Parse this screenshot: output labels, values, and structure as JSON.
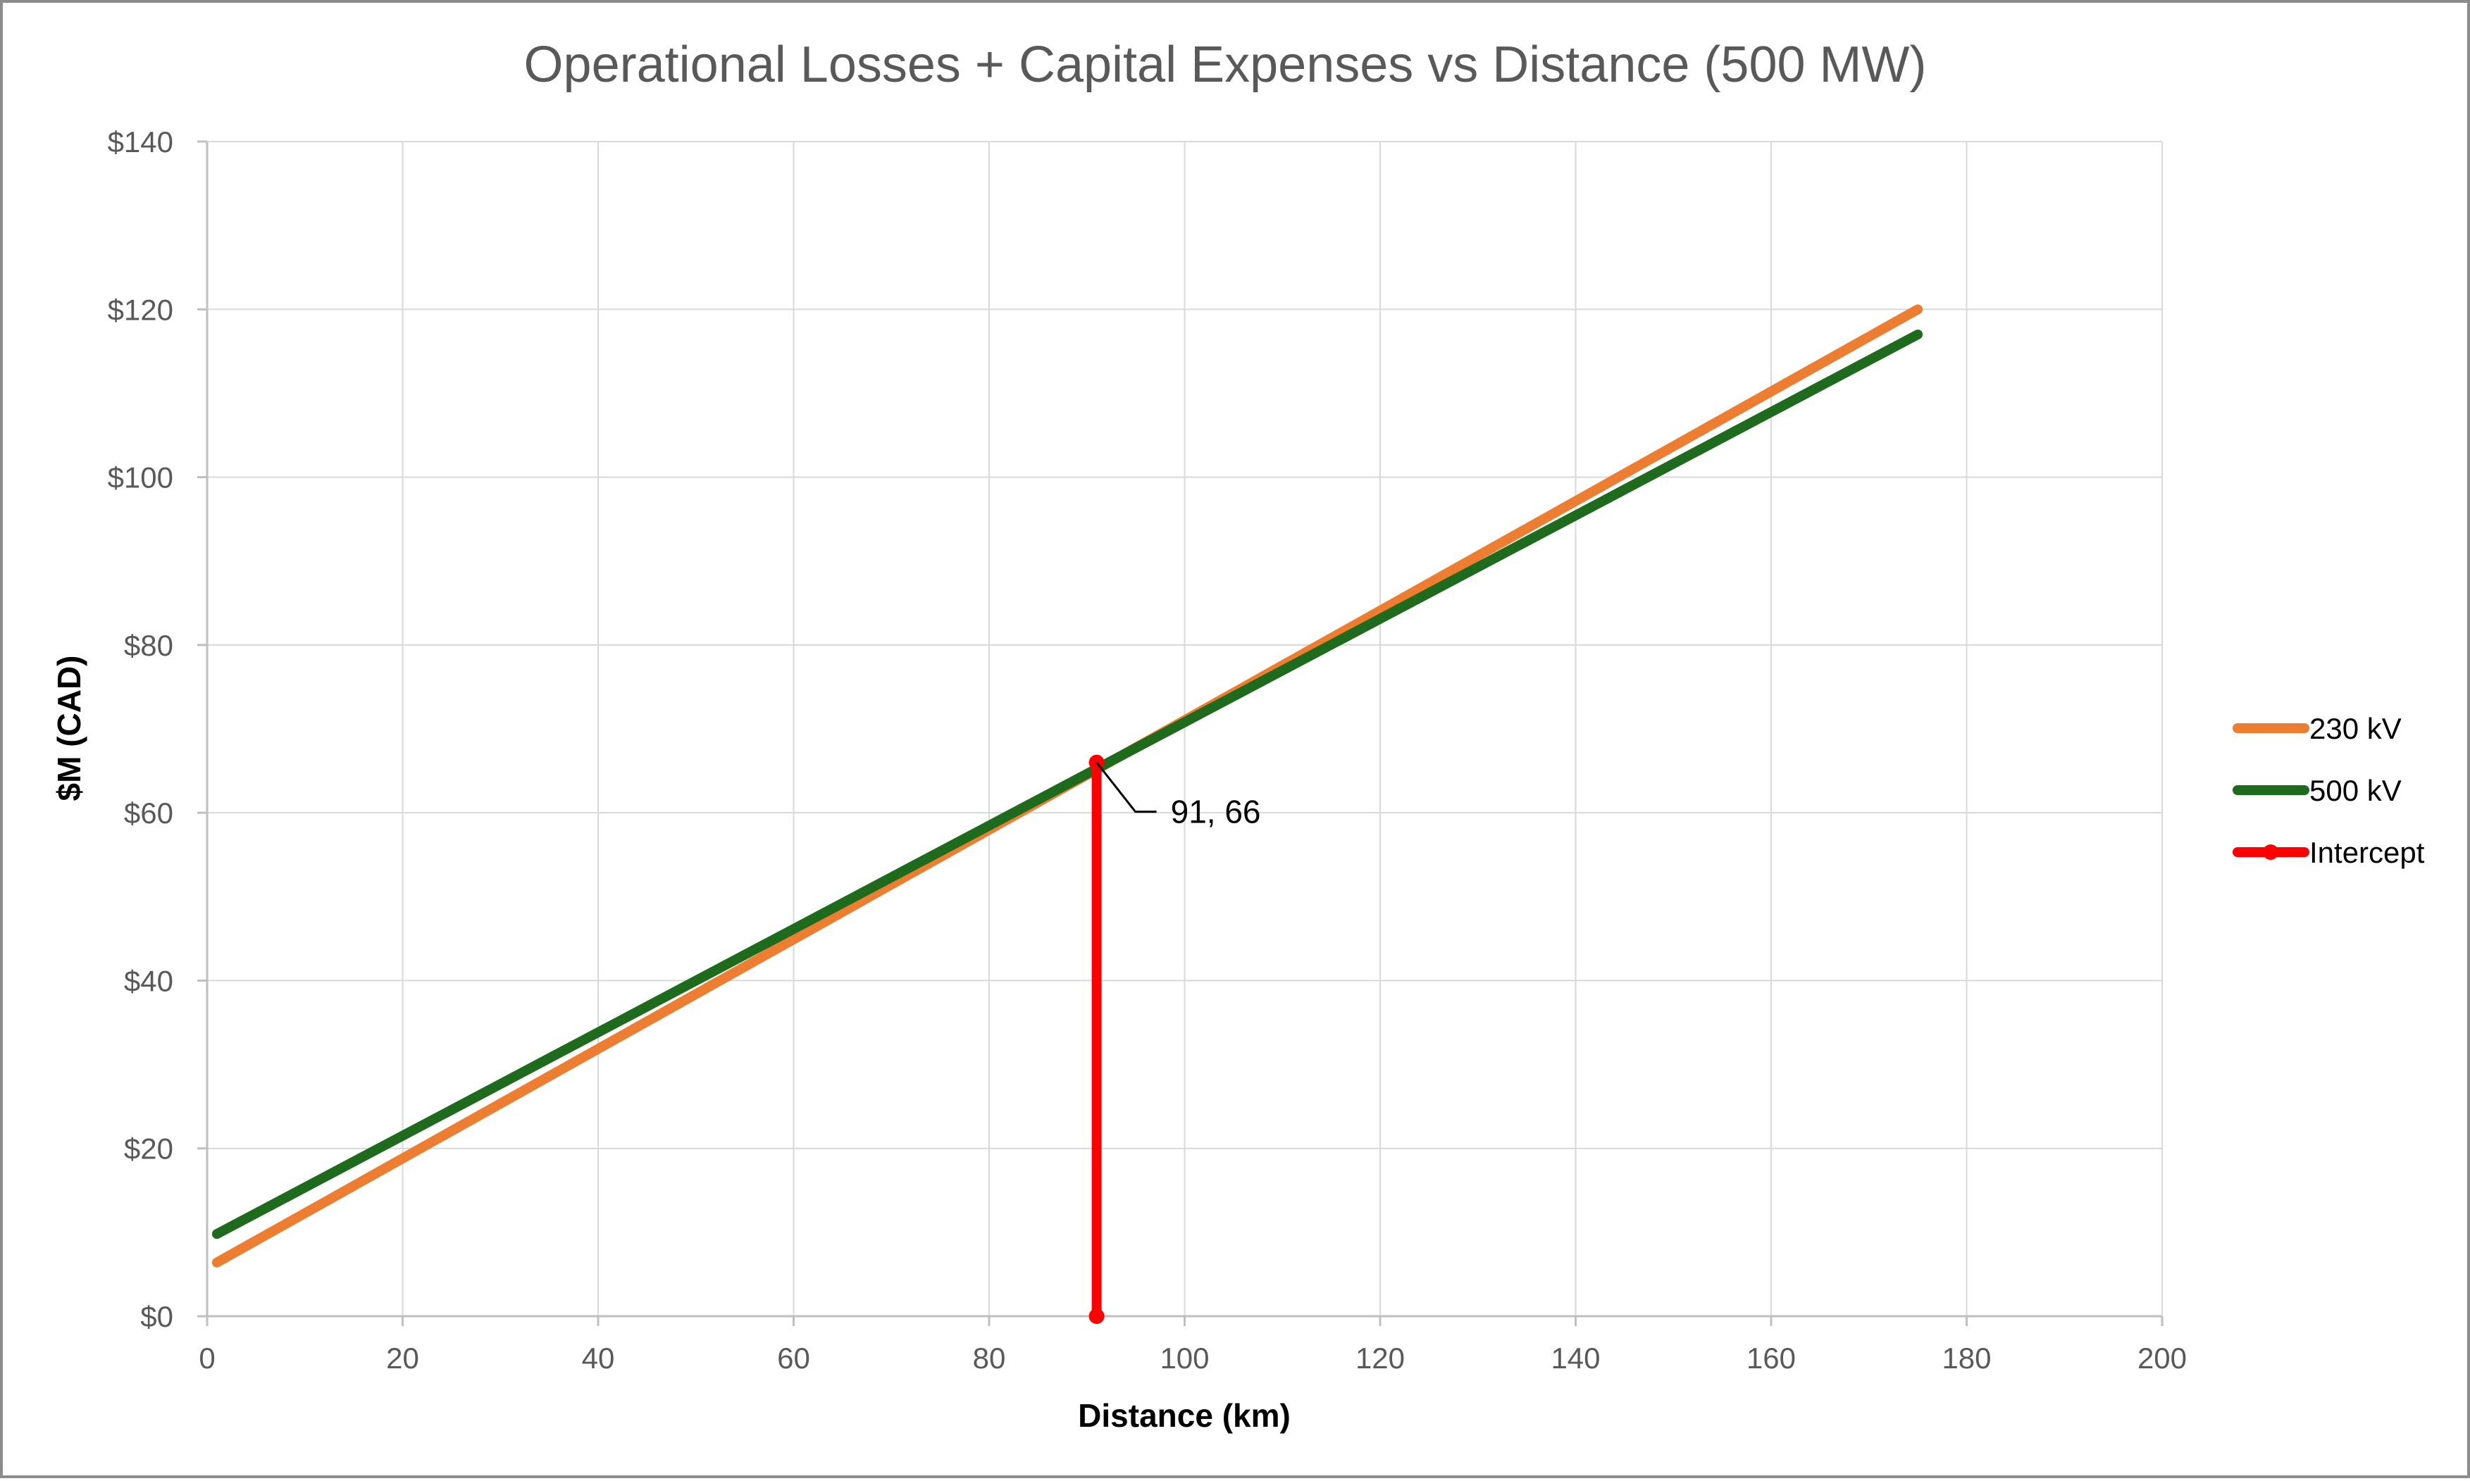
{
  "chart_data": {
    "type": "line",
    "title": "Operational Losses + Capital Expenses vs Distance (500 MW)",
    "xlabel": "Distance (km)",
    "ylabel": "$M (CAD)",
    "xlim": [
      0,
      200
    ],
    "ylim": [
      0,
      140
    ],
    "x_ticks": [
      0,
      20,
      40,
      60,
      80,
      100,
      120,
      140,
      160,
      180,
      200
    ],
    "y_ticks": [
      0,
      20,
      40,
      60,
      80,
      100,
      120,
      140
    ],
    "y_tick_labels": [
      "$0",
      "$20",
      "$40",
      "$60",
      "$80",
      "$100",
      "$120",
      "$140"
    ],
    "grid": true,
    "legend_position": "right",
    "series": [
      {
        "name": "230 kV",
        "color": "#ED7D31",
        "marker": false,
        "x": [
          1,
          175
        ],
        "y": [
          6.4,
          120
        ]
      },
      {
        "name": "500 kV",
        "color": "#1E6B1E",
        "marker": false,
        "x": [
          1,
          175
        ],
        "y": [
          9.8,
          117
        ]
      },
      {
        "name": "Intercept",
        "color": "#FF0000",
        "marker": true,
        "x": [
          91,
          91
        ],
        "y": [
          0,
          66
        ]
      }
    ],
    "annotations": [
      {
        "text": "91, 66",
        "x": 91,
        "y": 66
      }
    ]
  }
}
